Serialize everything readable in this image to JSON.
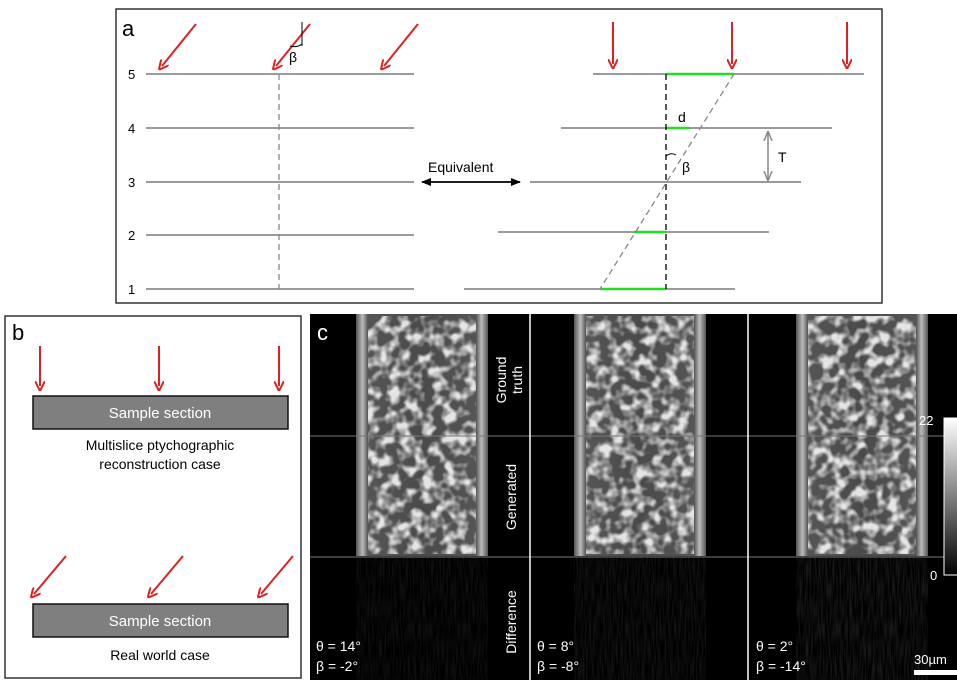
{
  "panel_a": {
    "label": "a",
    "layer_numbers": [
      "5",
      "4",
      "3",
      "2",
      "1"
    ],
    "beta_symbol": "β",
    "equivalent_label": "Equivalent",
    "d_label": "d",
    "t_label": "T"
  },
  "panel_b": {
    "label": "b",
    "sample_top": "Sample section",
    "caption_top_line1": "Multislice ptychographic",
    "caption_top_line2": "reconstruction case",
    "sample_bottom": "Sample section",
    "caption_bottom": "Real world case"
  },
  "panel_c": {
    "label": "c",
    "row_labels": {
      "ground_truth_line1": "Ground",
      "ground_truth_line2": "truth",
      "generated": "Generated",
      "difference": "Difference"
    },
    "columns": [
      {
        "theta": "θ = 14°",
        "beta": "β = -2°"
      },
      {
        "theta": "θ = 8°",
        "beta": "β = -8°"
      },
      {
        "theta": "θ = 2°",
        "beta": "β = -14°"
      }
    ],
    "colorbar": {
      "max": "22",
      "min": "0"
    },
    "scalebar": "30µm"
  },
  "colors": {
    "arrow": "#e02020",
    "layer_line": "#7a7a7a",
    "highlight": "#22dd22",
    "sample_fill": "#7f7f7f"
  }
}
